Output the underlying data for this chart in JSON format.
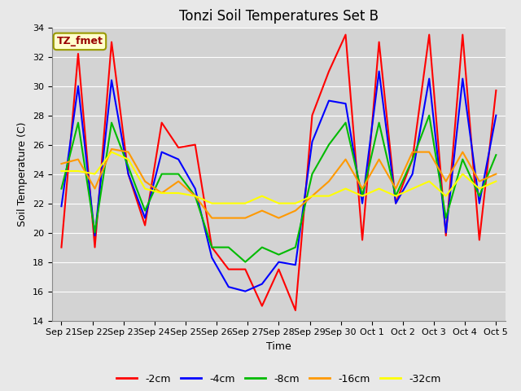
{
  "title": "Tonzi Soil Temperatures Set B",
  "xlabel": "Time",
  "ylabel": "Soil Temperature (C)",
  "ylim": [
    14,
    34
  ],
  "yticks": [
    14,
    16,
    18,
    20,
    22,
    24,
    26,
    28,
    30,
    32,
    34
  ],
  "x_labels": [
    "Sep 21",
    "Sep 22",
    "Sep 23",
    "Sep 24",
    "Sep 25",
    "Sep 26",
    "Sep 27",
    "Sep 28",
    "Sep 29",
    "Sep 30",
    "Oct 1",
    "Oct 2",
    "Oct 3",
    "Oct 4",
    "Oct 5"
  ],
  "annotation": "TZ_fmet",
  "series": {
    "-2cm": {
      "color": "#ff0000",
      "values": [
        19.0,
        32.2,
        19.0,
        33.0,
        24.0,
        20.5,
        27.5,
        25.8,
        26.0,
        19.0,
        17.5,
        17.5,
        15.0,
        17.5,
        14.7,
        28.0,
        31.0,
        33.5,
        19.5,
        33.0,
        22.0,
        25.0,
        33.5,
        19.8,
        33.5,
        19.5,
        29.7
      ]
    },
    "-4cm": {
      "color": "#0000ff",
      "values": [
        21.8,
        30.0,
        19.8,
        30.4,
        24.0,
        21.0,
        25.5,
        25.0,
        23.0,
        18.3,
        16.3,
        16.0,
        16.5,
        18.0,
        17.8,
        26.2,
        29.0,
        28.8,
        22.0,
        31.0,
        22.0,
        24.0,
        30.5,
        20.0,
        30.5,
        22.0,
        28.0
      ]
    },
    "-8cm": {
      "color": "#00bb00",
      "values": [
        23.0,
        27.5,
        20.0,
        27.5,
        24.5,
        21.5,
        24.0,
        24.0,
        22.5,
        19.0,
        19.0,
        18.0,
        19.0,
        18.5,
        19.0,
        24.0,
        26.0,
        27.5,
        22.5,
        27.5,
        22.5,
        25.0,
        28.0,
        21.0,
        25.0,
        22.5,
        25.3
      ]
    },
    "-16cm": {
      "color": "#ff9900",
      "values": [
        24.7,
        25.0,
        23.0,
        25.7,
        25.5,
        23.5,
        22.7,
        23.5,
        22.5,
        21.0,
        21.0,
        21.0,
        21.5,
        21.0,
        21.5,
        22.5,
        23.5,
        25.0,
        23.0,
        25.0,
        23.0,
        25.5,
        25.5,
        23.5,
        25.5,
        23.5,
        24.0
      ]
    },
    "-32cm": {
      "color": "#ffff00",
      "values": [
        24.2,
        24.2,
        24.0,
        25.5,
        25.0,
        23.0,
        22.7,
        22.7,
        22.5,
        22.0,
        22.0,
        22.0,
        22.5,
        22.0,
        22.0,
        22.5,
        22.5,
        23.0,
        22.5,
        23.0,
        22.5,
        23.0,
        23.5,
        22.5,
        24.0,
        23.0,
        23.5
      ]
    }
  },
  "bg_color": "#e8e8e8",
  "plot_bg": "#d3d3d3",
  "grid_color": "#ffffff",
  "title_fontsize": 12,
  "label_fontsize": 9,
  "tick_fontsize": 8,
  "legend_fontsize": 9,
  "linewidth": 1.5
}
